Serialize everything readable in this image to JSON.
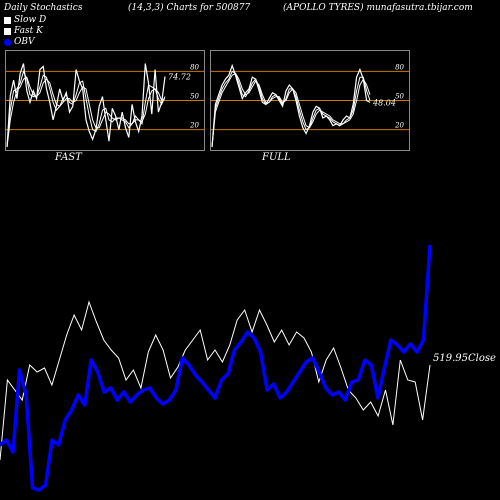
{
  "header": {
    "left": "Daily Stochastics",
    "middle": "(14,3,3) Charts for 500877",
    "right": "(APOLLO TYRES) munafasutra.tbijar.com"
  },
  "legend": [
    {
      "label": "Slow  D",
      "color": "#ffffff"
    },
    {
      "label": "Fast K",
      "color": "#ffffff"
    },
    {
      "label": "OBV",
      "color": "#0000ff"
    }
  ],
  "colors": {
    "background": "#000000",
    "line": "#ffffff",
    "obv": "#0000ff",
    "level": "#cc7a00",
    "panel_border": "#888888"
  },
  "chart_data": [
    {
      "type": "line",
      "title": "FAST",
      "value_label": "74.72",
      "ylim": [
        0,
        100
      ],
      "yticks": [
        20,
        50,
        80
      ],
      "levels": [
        20,
        50,
        80
      ],
      "series": [
        {
          "values": [
            2,
            55,
            71,
            52,
            78,
            88,
            60,
            48,
            60,
            52,
            82,
            85,
            62,
            48,
            30,
            44,
            62,
            50,
            58,
            38,
            44,
            82,
            70,
            62,
            30,
            18,
            10,
            20,
            44,
            54,
            30,
            8,
            42,
            34,
            20,
            38,
            22,
            12,
            46,
            28,
            18,
            34,
            88,
            68,
            36,
            82,
            38,
            48,
            74.72
          ]
        },
        {
          "values": [
            2,
            40,
            60,
            62,
            68,
            80,
            72,
            56,
            54,
            54,
            64,
            76,
            74,
            62,
            48,
            40,
            44,
            52,
            56,
            48,
            46,
            56,
            68,
            70,
            52,
            34,
            20,
            18,
            26,
            40,
            42,
            30,
            28,
            32,
            32,
            30,
            28,
            22,
            26,
            34,
            30,
            26,
            48,
            66,
            64,
            62,
            52,
            46,
            54
          ]
        },
        {
          "values": [
            2,
            30,
            48,
            60,
            64,
            72,
            74,
            64,
            56,
            54,
            58,
            68,
            72,
            68,
            56,
            46,
            44,
            48,
            52,
            52,
            48,
            50,
            58,
            64,
            62,
            46,
            30,
            22,
            22,
            30,
            38,
            36,
            32,
            30,
            32,
            32,
            30,
            26,
            26,
            30,
            30,
            28,
            36,
            52,
            60,
            62,
            58,
            50,
            52
          ]
        }
      ]
    },
    {
      "type": "line",
      "title": "FULL",
      "value_label": "48.04",
      "ylim": [
        0,
        100
      ],
      "yticks": [
        20,
        50,
        80
      ],
      "levels": [
        20,
        50,
        80
      ],
      "series": [
        {
          "values": [
            2,
            46,
            56,
            66,
            72,
            76,
            86,
            76,
            64,
            52,
            58,
            62,
            74,
            72,
            60,
            48,
            46,
            52,
            58,
            56,
            50,
            44,
            60,
            66,
            62,
            50,
            34,
            22,
            16,
            24,
            38,
            44,
            42,
            32,
            34,
            30,
            24,
            26,
            24,
            30,
            34,
            32,
            46,
            74,
            82,
            72,
            50,
            48.04
          ]
        },
        {
          "values": [
            2,
            42,
            52,
            62,
            68,
            72,
            80,
            78,
            68,
            56,
            54,
            60,
            68,
            72,
            64,
            52,
            46,
            48,
            54,
            56,
            52,
            46,
            52,
            62,
            62,
            54,
            40,
            28,
            20,
            22,
            32,
            40,
            42,
            36,
            34,
            32,
            28,
            26,
            24,
            26,
            30,
            32,
            40,
            60,
            74,
            74,
            60,
            50
          ]
        },
        {
          "values": [
            2,
            38,
            48,
            58,
            64,
            70,
            76,
            78,
            72,
            62,
            56,
            58,
            64,
            70,
            66,
            56,
            48,
            48,
            52,
            54,
            54,
            48,
            50,
            58,
            62,
            58,
            46,
            34,
            24,
            22,
            28,
            36,
            40,
            38,
            36,
            34,
            30,
            28,
            26,
            26,
            28,
            30,
            36,
            50,
            66,
            72,
            66,
            56
          ]
        }
      ]
    },
    {
      "type": "line",
      "close_label": "519.95Close",
      "series": [
        {
          "name": "Close",
          "color": "#ffffff",
          "values": [
            40,
            120,
            110,
            100,
            135,
            128,
            132,
            115,
            140,
            165,
            185,
            170,
            198,
            178,
            160,
            150,
            142,
            120,
            130,
            112,
            148,
            165,
            150,
            122,
            133,
            150,
            160,
            170,
            140,
            150,
            138,
            155,
            180,
            190,
            168,
            190,
            175,
            158,
            170,
            155,
            168,
            162,
            148,
            118,
            140,
            152,
            132,
            110,
            102,
            90,
            98,
            84,
            110,
            75,
            140,
            120,
            118,
            80,
            135
          ]
        },
        {
          "name": "OBV",
          "color": "#0000ff",
          "values": [
            55,
            60,
            48,
            130,
            105,
            12,
            10,
            15,
            60,
            55,
            80,
            90,
            105,
            95,
            140,
            128,
            108,
            112,
            100,
            108,
            98,
            105,
            110,
            112,
            102,
            96,
            100,
            110,
            142,
            135,
            125,
            118,
            110,
            102,
            120,
            126,
            150,
            158,
            168,
            162,
            148,
            110,
            116,
            102,
            108,
            118,
            128,
            138,
            142,
            128,
            112,
            105,
            108,
            100,
            118,
            120,
            140,
            135,
            102,
            132,
            160,
            155,
            148,
            156,
            148,
            160,
            255
          ]
        }
      ]
    }
  ]
}
